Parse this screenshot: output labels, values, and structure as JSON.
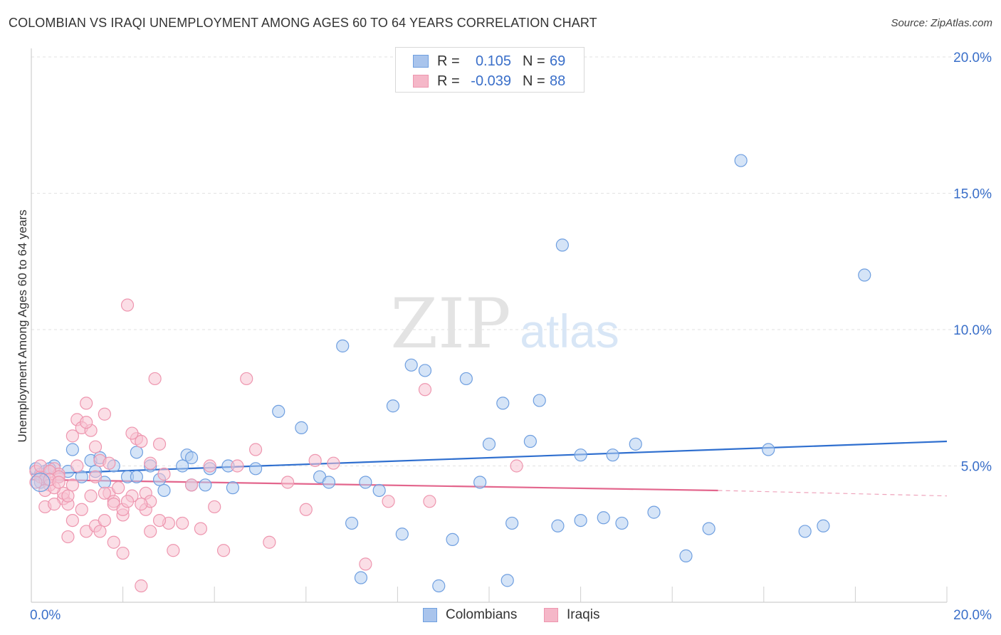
{
  "title": "COLOMBIAN VS IRAQI UNEMPLOYMENT AMONG AGES 60 TO 64 YEARS CORRELATION CHART",
  "source": "Source: ZipAtlas.com",
  "watermark": {
    "zip": "ZIP",
    "atlas": "atlas"
  },
  "legend_top": {
    "rows": [
      {
        "r_label": "R =",
        "r_value": "0.105",
        "n_label": "N =",
        "n_value": "69",
        "color": "#a9c4ec"
      },
      {
        "r_label": "R =",
        "r_value": "-0.039",
        "n_label": "N =",
        "n_value": "88",
        "color": "#f5b7c8"
      }
    ]
  },
  "legend_bottom": {
    "items": [
      {
        "label": "Colombians",
        "color": "#a9c4ec"
      },
      {
        "label": "Iraqis",
        "color": "#f5b7c8"
      }
    ]
  },
  "chart_data": {
    "type": "scatter",
    "title": "COLOMBIAN VS IRAQI UNEMPLOYMENT AMONG AGES 60 TO 64 YEARS CORRELATION CHART",
    "xlabel": "",
    "ylabel": "Unemployment Among Ages 60 to 64 years",
    "xlim": [
      0,
      20
    ],
    "ylim": [
      0,
      20
    ],
    "x_tick_labels": [
      "0.0%",
      "20.0%"
    ],
    "y_ticks": [
      5,
      10,
      15,
      20
    ],
    "y_tick_labels": [
      "5.0%",
      "10.0%",
      "15.0%",
      "20.0%"
    ],
    "grid": true,
    "series": [
      {
        "name": "Colombians",
        "color": "#6f9fe0",
        "fill": "#b3cdf1",
        "trend": {
          "x": [
            0,
            20
          ],
          "y": [
            4.7,
            5.9
          ],
          "color": "#2f6fcf"
        },
        "points": [
          [
            0.1,
            4.9
          ],
          [
            0.2,
            4.7
          ],
          [
            0.3,
            4.8
          ],
          [
            0.5,
            5.0
          ],
          [
            0.8,
            4.8
          ],
          [
            1.1,
            4.6
          ],
          [
            0.9,
            5.6
          ],
          [
            1.3,
            5.2
          ],
          [
            1.8,
            5.0
          ],
          [
            1.6,
            4.4
          ],
          [
            2.1,
            4.6
          ],
          [
            2.3,
            5.5
          ],
          [
            2.8,
            4.5
          ],
          [
            2.9,
            4.1
          ],
          [
            3.4,
            5.4
          ],
          [
            3.5,
            5.3
          ],
          [
            3.3,
            5.0
          ],
          [
            2.6,
            5.0
          ],
          [
            3.9,
            4.9
          ],
          [
            3.5,
            4.3
          ],
          [
            4.4,
            4.2
          ],
          [
            4.9,
            4.9
          ],
          [
            5.4,
            7.0
          ],
          [
            5.9,
            6.4
          ],
          [
            6.3,
            4.6
          ],
          [
            6.5,
            4.4
          ],
          [
            6.8,
            9.4
          ],
          [
            7.0,
            2.9
          ],
          [
            7.3,
            4.4
          ],
          [
            7.6,
            4.1
          ],
          [
            7.9,
            7.2
          ],
          [
            8.1,
            2.5
          ],
          [
            8.3,
            8.7
          ],
          [
            8.6,
            8.5
          ],
          [
            8.9,
            0.6
          ],
          [
            9.2,
            2.3
          ],
          [
            9.5,
            8.2
          ],
          [
            9.8,
            4.4
          ],
          [
            10.0,
            5.8
          ],
          [
            10.3,
            7.3
          ],
          [
            10.5,
            2.9
          ],
          [
            10.9,
            5.9
          ],
          [
            11.1,
            7.4
          ],
          [
            11.5,
            2.8
          ],
          [
            12.0,
            5.4
          ],
          [
            12.5,
            3.1
          ],
          [
            12.7,
            5.4
          ],
          [
            12.9,
            2.9
          ],
          [
            13.2,
            5.8
          ],
          [
            13.6,
            3.3
          ],
          [
            14.3,
            1.7
          ],
          [
            14.8,
            2.7
          ],
          [
            15.5,
            16.2
          ],
          [
            16.1,
            5.6
          ],
          [
            16.9,
            2.6
          ],
          [
            17.3,
            2.8
          ],
          [
            18.2,
            12.0
          ],
          [
            11.6,
            13.1
          ],
          [
            10.4,
            0.8
          ],
          [
            7.2,
            0.9
          ],
          [
            4.3,
            5.0
          ],
          [
            1.5,
            5.3
          ],
          [
            0.6,
            4.6
          ],
          [
            2.3,
            4.6
          ],
          [
            1.4,
            4.8
          ],
          [
            0.2,
            4.4
          ],
          [
            0.4,
            4.9
          ],
          [
            12.0,
            3.0
          ],
          [
            3.8,
            4.3
          ]
        ]
      },
      {
        "name": "Iraqis",
        "color": "#ee96af",
        "fill": "#f8c3d2",
        "trend": {
          "x": [
            0,
            15
          ],
          "y": [
            4.5,
            4.1
          ],
          "dash_to": [
            20,
            3.9
          ],
          "color": "#e3668d"
        },
        "points": [
          [
            0.1,
            4.8
          ],
          [
            0.2,
            4.6
          ],
          [
            0.3,
            4.5
          ],
          [
            0.4,
            4.3
          ],
          [
            0.5,
            4.9
          ],
          [
            0.6,
            4.7
          ],
          [
            0.7,
            3.8
          ],
          [
            0.8,
            3.6
          ],
          [
            0.9,
            4.3
          ],
          [
            1.0,
            6.7
          ],
          [
            1.1,
            6.4
          ],
          [
            1.2,
            7.3
          ],
          [
            1.3,
            6.3
          ],
          [
            1.4,
            5.7
          ],
          [
            1.5,
            5.2
          ],
          [
            1.6,
            6.9
          ],
          [
            1.7,
            4.0
          ],
          [
            1.8,
            3.7
          ],
          [
            1.9,
            4.2
          ],
          [
            2.0,
            3.2
          ],
          [
            2.1,
            10.9
          ],
          [
            2.2,
            3.9
          ],
          [
            2.3,
            6.0
          ],
          [
            2.4,
            5.9
          ],
          [
            2.5,
            3.4
          ],
          [
            2.6,
            2.6
          ],
          [
            2.7,
            8.2
          ],
          [
            2.8,
            5.8
          ],
          [
            2.9,
            4.7
          ],
          [
            3.0,
            2.9
          ],
          [
            3.1,
            1.9
          ],
          [
            3.3,
            2.9
          ],
          [
            3.5,
            4.3
          ],
          [
            3.7,
            2.7
          ],
          [
            3.9,
            5.0
          ],
          [
            4.0,
            3.5
          ],
          [
            4.2,
            1.9
          ],
          [
            4.5,
            5.0
          ],
          [
            4.7,
            8.2
          ],
          [
            4.9,
            5.6
          ],
          [
            5.2,
            2.2
          ],
          [
            5.6,
            4.4
          ],
          [
            6.0,
            3.4
          ],
          [
            6.2,
            5.2
          ],
          [
            6.6,
            5.1
          ],
          [
            7.3,
            1.4
          ],
          [
            7.8,
            3.7
          ],
          [
            8.6,
            7.8
          ],
          [
            8.7,
            3.7
          ],
          [
            10.6,
            5.0
          ],
          [
            0.3,
            3.5
          ],
          [
            0.5,
            3.6
          ],
          [
            0.7,
            4.0
          ],
          [
            0.9,
            3.0
          ],
          [
            1.1,
            3.4
          ],
          [
            1.2,
            2.6
          ],
          [
            1.4,
            2.8
          ],
          [
            1.6,
            3.0
          ],
          [
            1.8,
            2.2
          ],
          [
            2.0,
            1.8
          ],
          [
            2.4,
            0.6
          ],
          [
            2.5,
            4.0
          ],
          [
            2.6,
            3.7
          ],
          [
            2.8,
            3.0
          ],
          [
            0.2,
            5.0
          ],
          [
            0.4,
            4.8
          ],
          [
            0.6,
            4.6
          ],
          [
            0.8,
            2.4
          ],
          [
            1.0,
            5.0
          ],
          [
            1.2,
            6.6
          ],
          [
            1.4,
            4.6
          ],
          [
            1.6,
            4.0
          ],
          [
            1.8,
            3.6
          ],
          [
            2.0,
            3.4
          ],
          [
            2.2,
            6.2
          ],
          [
            2.4,
            3.6
          ],
          [
            2.6,
            5.1
          ],
          [
            0.3,
            4.1
          ],
          [
            0.5,
            4.2
          ],
          [
            0.9,
            6.1
          ],
          [
            1.3,
            3.9
          ],
          [
            1.7,
            5.1
          ],
          [
            2.1,
            3.7
          ],
          [
            0.4,
            4.5
          ],
          [
            0.6,
            4.4
          ],
          [
            1.5,
            2.6
          ],
          [
            0.8,
            3.9
          ],
          [
            0.1,
            4.4
          ]
        ]
      }
    ]
  }
}
